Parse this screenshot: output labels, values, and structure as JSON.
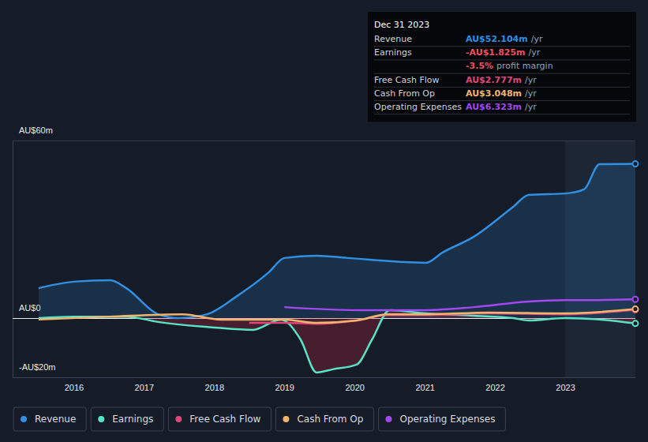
{
  "chart_data": {
    "type": "line",
    "xlim": [
      2015.13,
      2024.0
    ],
    "xticks": [
      2016,
      2017,
      2018,
      2019,
      2020,
      2021,
      2022,
      2023
    ],
    "ylim": [
      -20,
      60
    ],
    "yticks": [
      {
        "value": -20,
        "label": "-AU$20m"
      },
      {
        "value": 0,
        "label": "AU$0"
      },
      {
        "value": 60,
        "label": "AU$60m"
      }
    ],
    "grid": true,
    "legend": "bottom-left",
    "highlight_x": [
      2023,
      2024.0
    ],
    "series": [
      {
        "name": "Revenue",
        "color": "#2f8fe3",
        "type": "area",
        "x": [
          2015.5,
          2016.0,
          2016.52,
          2016.75,
          2017.2,
          2017.5,
          2017.9,
          2018.33,
          2018.78,
          2019.0,
          2019.46,
          2019.9,
          2021.02,
          2021.25,
          2021.7,
          2022.26,
          2022.48,
          2023.0,
          2023.27,
          2023.49,
          2024.0
        ],
        "values": [
          10.1,
          12.3,
          12.8,
          10.1,
          1.3,
          0,
          1.3,
          7.5,
          15.5,
          20.3,
          21.1,
          20.3,
          18.7,
          22.1,
          27.5,
          37.6,
          41.6,
          42.1,
          43.5,
          52.0,
          52.104
        ]
      },
      {
        "name": "Earnings",
        "color": "#58e3c4",
        "type": "area",
        "x": [
          2015.5,
          2016.0,
          2016.75,
          2017.2,
          2018.0,
          2018.55,
          2018.95,
          2019.23,
          2019.46,
          2019.69,
          2020.03,
          2020.25,
          2020.5,
          2021.02,
          2021.7,
          2022.26,
          2022.48,
          2023.0,
          2023.49,
          2024.0
        ],
        "values": [
          0,
          0.5,
          0.5,
          -1.3,
          -3.2,
          -4,
          -0.5,
          -7.2,
          -18.4,
          -17.3,
          -15.7,
          -7.2,
          2.7,
          1.6,
          0.8,
          0,
          -0.8,
          0,
          -0.5,
          -1.825
        ]
      },
      {
        "name": "Free Cash Flow",
        "color": "#e0457b",
        "type": "line",
        "x": [
          2018.5,
          2019.0,
          2019.46,
          2020.03,
          2020.47,
          2021.02,
          2021.92,
          2023.0,
          2024.0
        ],
        "values": [
          -1.6,
          -1.6,
          -1.9,
          -0.8,
          1.1,
          1.1,
          1.6,
          1.3,
          2.777
        ]
      },
      {
        "name": "Cash From Op",
        "color": "#f2b46c",
        "type": "line",
        "x": [
          2015.5,
          2016.52,
          2017.55,
          2018.1,
          2019.0,
          2019.46,
          2020.03,
          2020.47,
          2021.02,
          2021.92,
          2023.0,
          2024.0
        ],
        "values": [
          -0.5,
          0.5,
          1.3,
          -0.5,
          -0.5,
          -1.6,
          -0.8,
          1.3,
          1.3,
          1.9,
          1.6,
          3.048
        ]
      },
      {
        "name": "Operating Expenses",
        "color": "#a347f0",
        "type": "line",
        "x": [
          2019.0,
          2020.03,
          2021.02,
          2021.7,
          2022.48,
          2023.0,
          2023.49,
          2024.0
        ],
        "values": [
          3.7,
          2.7,
          2.7,
          3.7,
          5.6,
          6.1,
          6.1,
          6.323
        ]
      }
    ],
    "tooltip": {
      "title": "Dec 31 2023",
      "rows": [
        {
          "label": "Revenue",
          "value": "AU$52.104m",
          "suffix": "/yr",
          "color": "#2f8fe3"
        },
        {
          "label": "Earnings",
          "value": "-AU$1.825m",
          "suffix": "/yr",
          "color": "#ef4f5f"
        },
        {
          "value": "-3.5%",
          "suffix": "profit margin",
          "color": "#ef4f5f"
        },
        {
          "label": "Free Cash Flow",
          "value": "AU$2.777m",
          "suffix": "/yr",
          "color": "#e0457b"
        },
        {
          "label": "Cash From Op",
          "value": "AU$3.048m",
          "suffix": "/yr",
          "color": "#f2b46c"
        },
        {
          "label": "Operating Expenses",
          "value": "AU$6.323m",
          "suffix": "/yr",
          "color": "#a347f0"
        }
      ]
    }
  }
}
